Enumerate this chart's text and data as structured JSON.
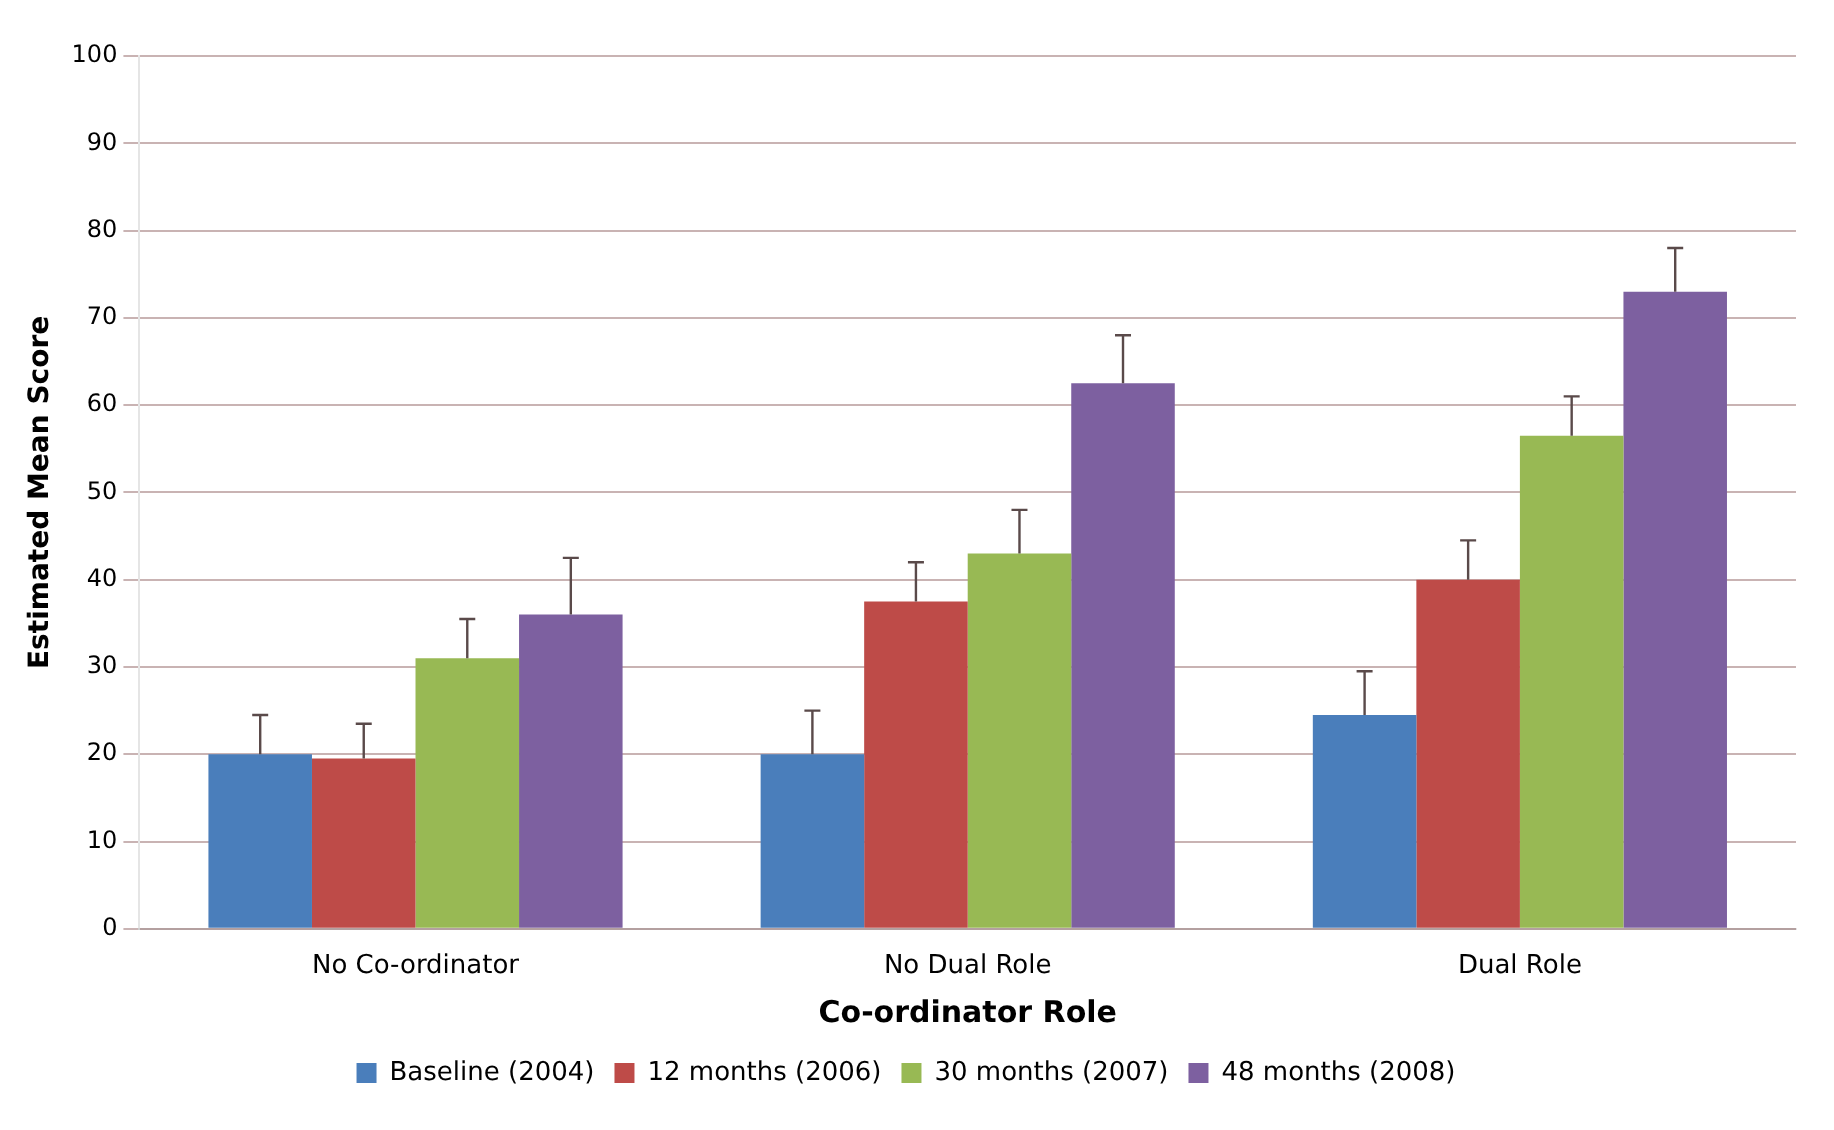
{
  "chart_data": {
    "type": "bar",
    "xlabel": "Co-ordinator Role",
    "ylabel": "Estimated Mean Score",
    "categories": [
      "No Co-ordinator",
      "No Dual Role",
      "Dual Role"
    ],
    "series": [
      {
        "name": "Baseline (2004)",
        "color": "#4a7ebb",
        "values": [
          20,
          20,
          24.5
        ],
        "errors": [
          [
            20,
            24.5
          ],
          [
            20,
            25
          ],
          [
            24.5,
            29.5
          ]
        ]
      },
      {
        "name": "12 months (2006)",
        "color": "#be4b48",
        "values": [
          19.5,
          37.5,
          40
        ],
        "errors": [
          [
            19.5,
            23.5
          ],
          [
            37.5,
            42
          ],
          [
            40,
            44.5
          ]
        ]
      },
      {
        "name": "30 months (2007)",
        "color": "#98b954",
        "values": [
          31,
          43,
          56.5
        ],
        "errors": [
          [
            31,
            35.5
          ],
          [
            43,
            48
          ],
          [
            56.5,
            61
          ]
        ]
      },
      {
        "name": "48 months (2008)",
        "color": "#7d60a0",
        "values": [
          36,
          62.5,
          73
        ],
        "errors": [
          [
            36,
            42.5
          ],
          [
            62.5,
            68
          ],
          [
            73,
            78
          ]
        ]
      }
    ],
    "ylim": [
      0,
      100
    ],
    "yticks": [
      0,
      10,
      20,
      30,
      40,
      50,
      60,
      70,
      80,
      90,
      100
    ],
    "grid": "y",
    "legend": "bottom"
  }
}
